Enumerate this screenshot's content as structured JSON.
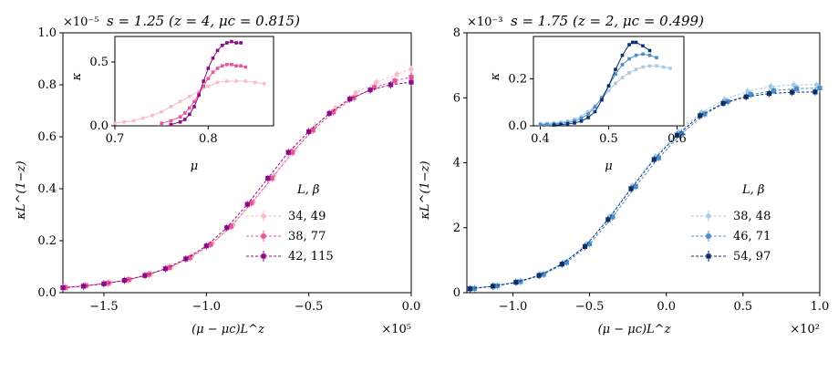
{
  "chart_data": [
    {
      "type": "line",
      "title": "s = 1.25 (z = 4, μc = 0.815)",
      "offset_label": "×10⁻⁵",
      "xlabel": "(μ − μc)L^z",
      "ylabel": "κL^(1−z)",
      "x_multiplier_label": "×10⁵",
      "xlim": [
        -1.7,
        0.0
      ],
      "ylim": [
        0.0,
        1.0
      ],
      "xticks": [
        "−1.5",
        "−1.0",
        "−0.5",
        "0.0"
      ],
      "yticks": [
        "0.0",
        "0.2",
        "0.4",
        "0.6",
        "0.8",
        "1.0"
      ],
      "legend_title": "L, β",
      "legend_position": "right",
      "series": [
        {
          "name": "34, 49",
          "color": "#f7bcc5",
          "marker": "circle",
          "x": [
            -1.68,
            -1.58,
            -1.47,
            -1.37,
            -1.27,
            -1.17,
            -1.07,
            -0.97,
            -0.87,
            -0.77,
            -0.67,
            -0.57,
            -0.47,
            -0.37,
            -0.27,
            -0.17,
            -0.07,
            0.0
          ],
          "y": [
            0.02,
            0.028,
            0.038,
            0.052,
            0.073,
            0.1,
            0.14,
            0.19,
            0.26,
            0.35,
            0.45,
            0.55,
            0.64,
            0.71,
            0.77,
            0.81,
            0.84,
            0.86
          ]
        },
        {
          "name": "38, 77",
          "color": "#e8559a",
          "marker": "square",
          "x": [
            -1.69,
            -1.59,
            -1.48,
            -1.38,
            -1.28,
            -1.18,
            -1.08,
            -0.98,
            -0.88,
            -0.78,
            -0.68,
            -0.58,
            -0.48,
            -0.38,
            -0.28,
            -0.18,
            -0.08,
            0.0
          ],
          "y": [
            0.02,
            0.027,
            0.037,
            0.05,
            0.07,
            0.097,
            0.135,
            0.185,
            0.255,
            0.345,
            0.44,
            0.54,
            0.625,
            0.695,
            0.75,
            0.79,
            0.815,
            0.83
          ]
        },
        {
          "name": "42, 115",
          "color": "#8b0a85",
          "marker": "square",
          "x": [
            -1.7,
            -1.6,
            -1.5,
            -1.4,
            -1.3,
            -1.2,
            -1.1,
            -1.0,
            -0.9,
            -0.8,
            -0.7,
            -0.6,
            -0.5,
            -0.4,
            -0.3,
            -0.2,
            -0.1,
            0.0
          ],
          "y": [
            0.019,
            0.025,
            0.034,
            0.047,
            0.066,
            0.092,
            0.13,
            0.18,
            0.25,
            0.34,
            0.44,
            0.54,
            0.62,
            0.69,
            0.745,
            0.78,
            0.8,
            0.81
          ]
        }
      ],
      "inset": {
        "xlabel": "μ",
        "ylabel": "κ",
        "xlim": [
          0.7,
          0.87
        ],
        "ylim": [
          0.0,
          0.7
        ],
        "xticks": [
          "0.7",
          "0.8"
        ],
        "yticks": [
          "0.0",
          "0.5"
        ],
        "series": [
          {
            "name": "34, 49",
            "x": [
              0.7,
              0.71,
              0.72,
              0.73,
              0.74,
              0.75,
              0.76,
              0.77,
              0.78,
              0.79,
              0.8,
              0.81,
              0.82,
              0.83,
              0.84,
              0.85,
              0.86
            ],
            "y": [
              0.02,
              0.03,
              0.04,
              0.06,
              0.08,
              0.11,
              0.15,
              0.19,
              0.23,
              0.27,
              0.31,
              0.34,
              0.35,
              0.35,
              0.35,
              0.34,
              0.33
            ]
          },
          {
            "name": "38, 77",
            "x": [
              0.75,
              0.76,
              0.77,
              0.775,
              0.78,
              0.785,
              0.79,
              0.795,
              0.8,
              0.805,
              0.81,
              0.815,
              0.82,
              0.825,
              0.83,
              0.835,
              0.84
            ],
            "y": [
              0.02,
              0.04,
              0.07,
              0.1,
              0.14,
              0.19,
              0.25,
              0.31,
              0.37,
              0.42,
              0.45,
              0.47,
              0.48,
              0.48,
              0.47,
              0.47,
              0.46
            ]
          },
          {
            "name": "42, 115",
            "x": [
              0.76,
              0.77,
              0.775,
              0.78,
              0.785,
              0.79,
              0.795,
              0.8,
              0.805,
              0.81,
              0.815,
              0.82,
              0.825,
              0.83,
              0.835
            ],
            "y": [
              0.01,
              0.03,
              0.05,
              0.09,
              0.15,
              0.24,
              0.35,
              0.45,
              0.53,
              0.59,
              0.63,
              0.65,
              0.66,
              0.65,
              0.65
            ]
          }
        ]
      }
    },
    {
      "type": "line",
      "title": "s = 1.75 (z = 2, μc = 0.499)",
      "offset_label": "×10⁻³",
      "xlabel": "(μ − μc)L^z",
      "ylabel": "κL^(1−z)",
      "x_multiplier_label": "×10²",
      "xlim": [
        -1.3,
        1.0
      ],
      "ylim": [
        0,
        8
      ],
      "xticks": [
        "−1.0",
        "−0.5",
        "0.0",
        "0.5",
        "1.0"
      ],
      "yticks": [
        "0",
        "2",
        "4",
        "6",
        "8"
      ],
      "legend_title": "L, β",
      "legend_position": "right",
      "series": [
        {
          "name": "38, 48",
          "color": "#a7cbe6",
          "marker": "circle",
          "x": [
            -1.27,
            -1.12,
            -0.97,
            -0.82,
            -0.67,
            -0.52,
            -0.37,
            -0.22,
            -0.07,
            0.08,
            0.23,
            0.38,
            0.53,
            0.68,
            0.83,
            0.98
          ],
          "y": [
            0.13,
            0.21,
            0.33,
            0.55,
            0.92,
            1.5,
            2.35,
            3.3,
            4.2,
            4.95,
            5.55,
            5.95,
            6.2,
            6.35,
            6.4,
            6.4
          ]
        },
        {
          "name": "46, 71",
          "color": "#4a8dc7",
          "marker": "square",
          "x": [
            -1.25,
            -1.1,
            -0.95,
            -0.8,
            -0.65,
            -0.5,
            -0.35,
            -0.2,
            -0.05,
            0.1,
            0.25,
            0.4,
            0.55,
            0.7,
            0.85,
            1.0
          ],
          "y": [
            0.13,
            0.21,
            0.34,
            0.56,
            0.93,
            1.5,
            2.33,
            3.27,
            4.15,
            4.9,
            5.5,
            5.88,
            6.1,
            6.22,
            6.28,
            6.3
          ]
        },
        {
          "name": "54, 97",
          "color": "#0c2f6b",
          "marker": "square",
          "x": [
            -1.28,
            -1.13,
            -0.98,
            -0.83,
            -0.68,
            -0.53,
            -0.38,
            -0.23,
            -0.08,
            0.07,
            0.22,
            0.37,
            0.52,
            0.67,
            0.82,
            0.97
          ],
          "y": [
            0.12,
            0.2,
            0.32,
            0.53,
            0.88,
            1.42,
            2.25,
            3.2,
            4.1,
            4.85,
            5.45,
            5.83,
            6.03,
            6.13,
            6.17,
            6.18
          ]
        }
      ],
      "inset": {
        "xlabel": "μ",
        "ylabel": "κ",
        "xlim": [
          0.39,
          0.61
        ],
        "ylim": [
          0.0,
          0.38
        ],
        "xticks": [
          "0.4",
          "0.5",
          "0.6"
        ],
        "yticks": [
          "0.0",
          "0.2"
        ],
        "series": [
          {
            "name": "38, 48",
            "x": [
              0.4,
              0.41,
              0.42,
              0.43,
              0.44,
              0.45,
              0.46,
              0.47,
              0.48,
              0.49,
              0.5,
              0.51,
              0.52,
              0.53,
              0.54,
              0.55,
              0.56,
              0.57,
              0.58,
              0.59
            ],
            "y": [
              0.01,
              0.01,
              0.012,
              0.015,
              0.02,
              0.028,
              0.04,
              0.06,
              0.085,
              0.115,
              0.15,
              0.18,
              0.205,
              0.225,
              0.24,
              0.25,
              0.255,
              0.255,
              0.25,
              0.245
            ]
          },
          {
            "name": "46, 71",
            "x": [
              0.4,
              0.41,
              0.42,
              0.43,
              0.44,
              0.45,
              0.46,
              0.47,
              0.48,
              0.49,
              0.5,
              0.51,
              0.52,
              0.53,
              0.54,
              0.55,
              0.56,
              0.57
            ],
            "y": [
              0.005,
              0.006,
              0.008,
              0.01,
              0.014,
              0.02,
              0.032,
              0.05,
              0.08,
              0.12,
              0.17,
              0.22,
              0.26,
              0.285,
              0.3,
              0.305,
              0.3,
              0.29
            ]
          },
          {
            "name": "54, 97",
            "x": [
              0.42,
              0.43,
              0.44,
              0.45,
              0.46,
              0.47,
              0.48,
              0.49,
              0.5,
              0.51,
              0.52,
              0.53,
              0.535,
              0.54,
              0.55,
              0.56
            ],
            "y": [
              0.003,
              0.005,
              0.008,
              0.012,
              0.02,
              0.035,
              0.06,
              0.11,
              0.17,
              0.24,
              0.3,
              0.345,
              0.355,
              0.355,
              0.34,
              0.32
            ]
          }
        ]
      }
    }
  ]
}
